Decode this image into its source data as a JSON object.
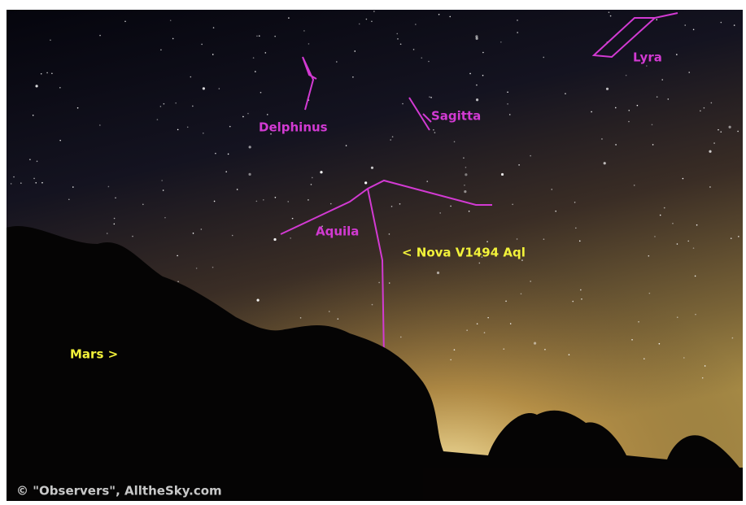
{
  "labels": {
    "lyra": "Lyra",
    "delphinus": "Delphinus",
    "sagitta": "Sagitta",
    "aquila": "Aquila",
    "nova": "< Nova V1494 Aql",
    "mars": "Mars >"
  },
  "credit": "© \"Observers\", AlltheSky.com"
}
